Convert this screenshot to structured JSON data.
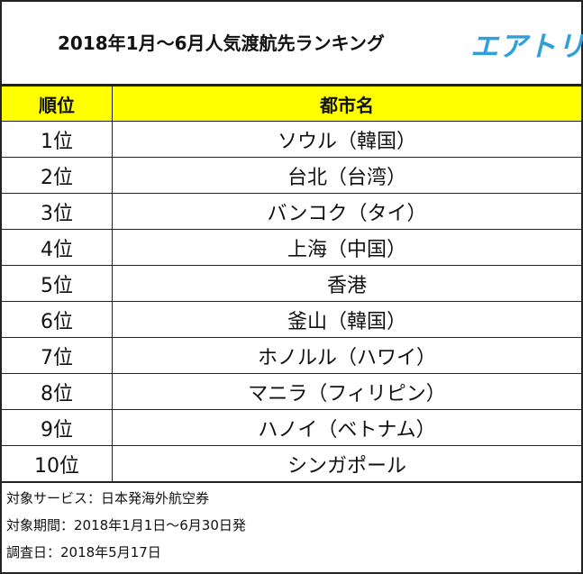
{
  "header": {
    "title": "2018年1月～6月人気渡航先ランキング",
    "logo_text": "エアトリ",
    "logo_color": "#2e9fd9"
  },
  "table": {
    "header_color": "#ffff00",
    "columns": [
      "順位",
      "都市名"
    ],
    "rows": [
      {
        "rank": "1位",
        "city": "ソウル（韓国）"
      },
      {
        "rank": "2位",
        "city": "台北（台湾）"
      },
      {
        "rank": "3位",
        "city": "バンコク（タイ）"
      },
      {
        "rank": "4位",
        "city": "上海（中国）"
      },
      {
        "rank": "5位",
        "city": "香港"
      },
      {
        "rank": "6位",
        "city": "釜山（韓国）"
      },
      {
        "rank": "7位",
        "city": "ホノルル（ハワイ）"
      },
      {
        "rank": "8位",
        "city": "マニラ（フィリピン）"
      },
      {
        "rank": "9位",
        "city": "ハノイ（ベトナム）"
      },
      {
        "rank": "10位",
        "city": "シンガポール"
      }
    ]
  },
  "notes": [
    "対象サービス：日本発海外航空券",
    "対象期間：2018年1月1日～6月30日発",
    "調査日：2018年5月17日"
  ]
}
